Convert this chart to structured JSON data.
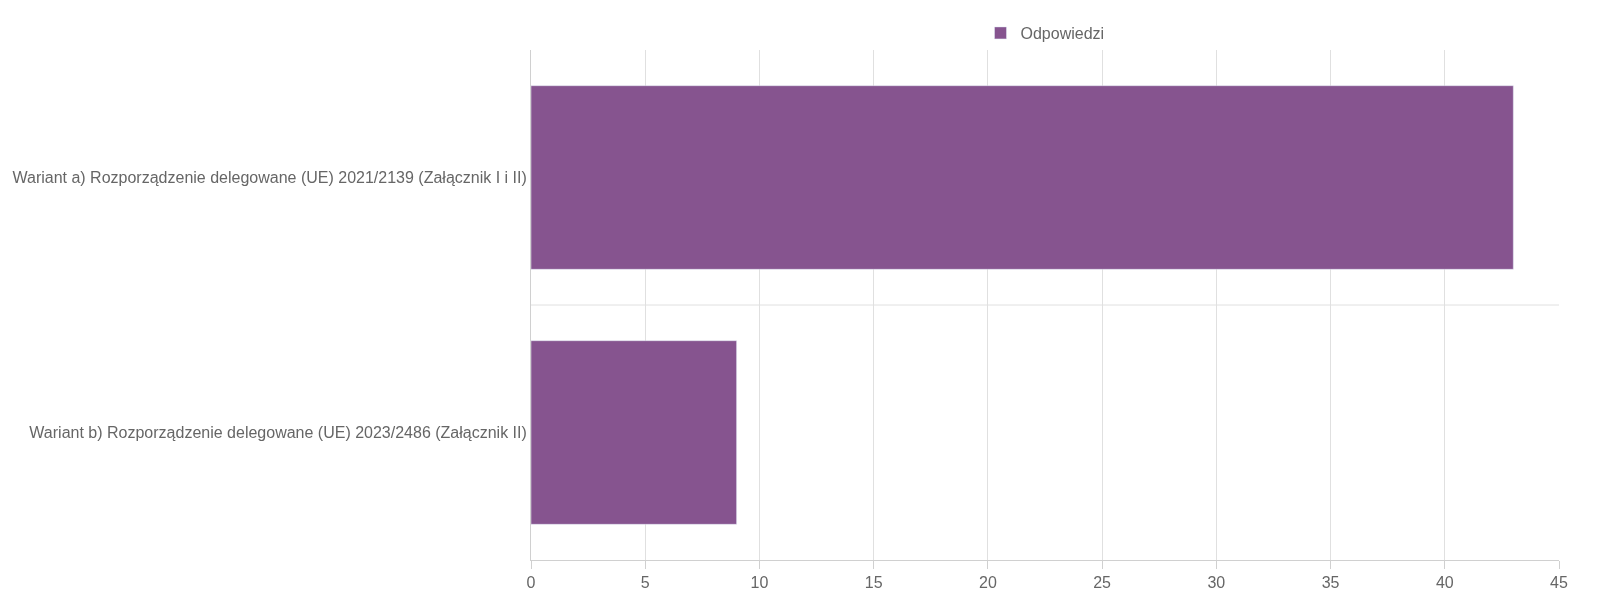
{
  "chart_data": {
    "type": "bar",
    "orientation": "horizontal",
    "categories": [
      "Wariant a) Rozporządzenie delegowane (UE) 2021/2139 (Załącznik I i II)",
      "Wariant b) Rozporządzenie delegowane (UE) 2023/2486 (Załącznik II)"
    ],
    "series": [
      {
        "name": "Odpowiedzi",
        "color": "#86548f",
        "values": [
          43,
          9
        ]
      }
    ],
    "xlim": [
      0,
      45
    ],
    "xticks": [
      0,
      5,
      10,
      15,
      20,
      25,
      30,
      35,
      40,
      45
    ],
    "grid": true,
    "legend": "top"
  }
}
